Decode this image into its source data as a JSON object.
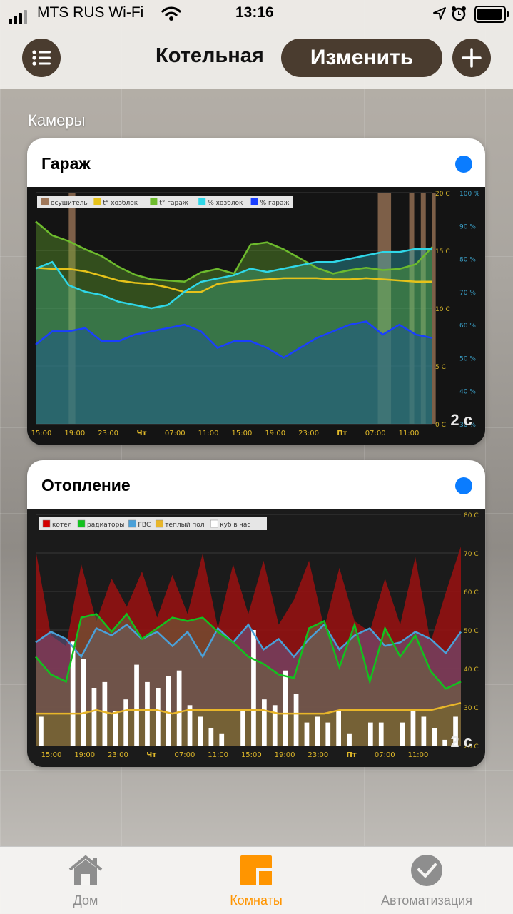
{
  "status_bar": {
    "carrier": "MTS RUS Wi-Fi",
    "time": "13:16",
    "icons": [
      "signal-icon",
      "wifi-icon",
      "location-icon",
      "alarm-icon",
      "battery-icon"
    ]
  },
  "header": {
    "title": "Котельная",
    "edit_label": "Изменить",
    "menu_icon": "list-icon",
    "add_icon": "plus-icon"
  },
  "section_title": "Камеры",
  "colors": {
    "accent": "#4a3c2f",
    "active_tab": "#ff9500",
    "inactive_tab": "#8e8e8e",
    "status_dot": "#0a7cff"
  },
  "cameras": [
    {
      "name": "Гараж",
      "ago": "2 c",
      "chart_data": {
        "type": "area",
        "legend": [
          "осушитель",
          "t° хозблок",
          "t° гараж",
          "% хозблок",
          "% гараж"
        ],
        "legend_colors": [
          "#a0785a",
          "#e6c21a",
          "#6dbb2d",
          "#2fd7e8",
          "#1a3fff"
        ],
        "x_ticks": [
          "15:00",
          "19:00",
          "23:00",
          "Чт",
          "07:00",
          "11:00",
          "15:00",
          "19:00",
          "23:00",
          "Пт",
          "07:00",
          "11:00"
        ],
        "y_left_ticks": [
          "20 C",
          "15 C",
          "10 C",
          "5 C",
          "0 C"
        ],
        "y_left_range": [
          0,
          20
        ],
        "y_right_ticks": [
          "100 %",
          "90 %",
          "80 %",
          "70 %",
          "60 %",
          "50 %",
          "40 %",
          "30 %"
        ],
        "y_right_range": [
          30,
          100
        ],
        "series": [
          {
            "name": "t° хозблок",
            "color": "#e6c21a",
            "values": [
              13.5,
              13.4,
              13.4,
              13.2,
              12.8,
              12.4,
              12.2,
              12.1,
              11.8,
              11.4,
              11.4,
              12.1,
              12.3,
              12.4,
              12.5,
              12.6,
              12.6,
              12.6,
              12.5,
              12.5,
              12.6,
              12.5,
              12.4,
              12.3,
              12.3
            ]
          },
          {
            "name": "t° гараж",
            "color": "#6dbb2d",
            "values": [
              17.5,
              16.3,
              15.8,
              15.1,
              14.5,
              13.6,
              12.9,
              12.5,
              12.4,
              12.3,
              13.1,
              13.4,
              13.0,
              15.5,
              15.7,
              15.1,
              14.3,
              13.5,
              13.0,
              13.3,
              13.5,
              13.3,
              13.4,
              13.8,
              15.3
            ]
          },
          {
            "name": "% хозблок",
            "color": "#2fd7e8",
            "values": [
              77,
              79,
              72,
              70,
              69,
              67,
              66,
              65,
              66,
              70,
              73,
              74,
              75,
              77,
              76,
              77,
              78,
              79,
              79,
              80,
              81,
              82,
              82,
              83,
              83
            ]
          },
          {
            "name": "% гараж",
            "color": "#1a3fff",
            "values": [
              54,
              58,
              58,
              59,
              55,
              55,
              57,
              58,
              59,
              60,
              58,
              53,
              55,
              55,
              53,
              50,
              53,
              56,
              58,
              60,
              61,
              57,
              60,
              57,
              56
            ]
          }
        ],
        "dehumidifier_on": [
          [
            2.0,
            2.4
          ],
          [
            20.7,
            21.5
          ],
          [
            22.6,
            22.9
          ],
          [
            23.3,
            23.6
          ],
          [
            24.0,
            24.2
          ]
        ]
      }
    },
    {
      "name": "Отопление",
      "ago": "2 c",
      "chart_data": {
        "type": "area",
        "legend": [
          "котел",
          "радиаторы",
          "ГВС",
          "теплый пол",
          "куб в час"
        ],
        "legend_colors": [
          "#d40000",
          "#12c21e",
          "#4aa0d8",
          "#e8b62a",
          "#ffffff"
        ],
        "x_ticks": [
          "15:00",
          "19:00",
          "23:00",
          "Чт",
          "07:00",
          "11:00",
          "15:00",
          "19:00",
          "23:00",
          "Пт",
          "07:00",
          "11:00"
        ],
        "y_right_ticks": [
          "80 C",
          "70 C",
          "60 C",
          "50 C",
          "40 C",
          "30 C",
          "20 C"
        ],
        "y_range": [
          15,
          80
        ],
        "series": [
          {
            "name": "котел",
            "color": "#d40000",
            "values": [
              70,
              46,
              43,
              66,
              50,
              62,
              54,
              64,
              51,
              63,
              52,
              69,
              48,
              66,
              52,
              67,
              49,
              56,
              67,
              48,
              65,
              50,
              47,
              62,
              49,
              68,
              44,
              58,
              71
            ]
          },
          {
            "name": "радиаторы",
            "color": "#12c21e",
            "values": [
              40,
              35,
              33,
              51,
              52,
              47,
              52,
              45,
              48,
              51,
              50,
              51,
              47,
              44,
              40,
              38,
              35,
              34,
              48,
              50,
              37,
              49,
              33,
              48,
              40,
              46,
              36,
              31,
              33
            ]
          },
          {
            "name": "ГВС",
            "color": "#4aa0d8",
            "values": [
              44,
              47,
              45,
              40,
              48,
              46,
              49,
              45,
              47,
              43,
              47,
              40,
              48,
              44,
              49,
              42,
              45,
              40,
              45,
              49,
              42,
              46,
              48,
              43,
              44,
              47,
              45,
              41,
              47
            ]
          },
          {
            "name": "теплый пол",
            "color": "#e8b62a",
            "values": [
              24,
              24,
              24,
              24,
              25,
              24,
              25,
              25,
              25,
              24,
              25,
              25,
              25,
              25,
              25,
              25,
              24,
              24,
              24,
              24,
              25,
              25,
              25,
              25,
              25,
              25,
              25,
              26,
              27
            ]
          },
          {
            "name": "куб в час",
            "color": "#ffffff",
            "values": [
              0.5,
              0,
              0,
              1.8,
              1.5,
              1.0,
              1.1,
              0.6,
              0.8,
              1.4,
              1.1,
              1.0,
              1.2,
              1.3,
              0.7,
              0.5,
              0.3,
              0.2,
              0,
              0.6,
              2.0,
              0.8,
              0.7,
              1.3,
              0.9,
              0.4,
              0.5,
              0.4,
              0.6,
              0.2,
              0,
              0.4,
              0.4,
              0,
              0.4,
              0.6,
              0.5,
              0.3,
              0.1,
              0.5
            ]
          }
        ]
      }
    }
  ],
  "tabs": [
    {
      "label": "Дом",
      "icon": "house-icon",
      "active": false
    },
    {
      "label": "Комнаты",
      "icon": "rooms-icon",
      "active": true
    },
    {
      "label": "Автоматизация",
      "icon": "check-circle-icon",
      "active": false
    }
  ]
}
